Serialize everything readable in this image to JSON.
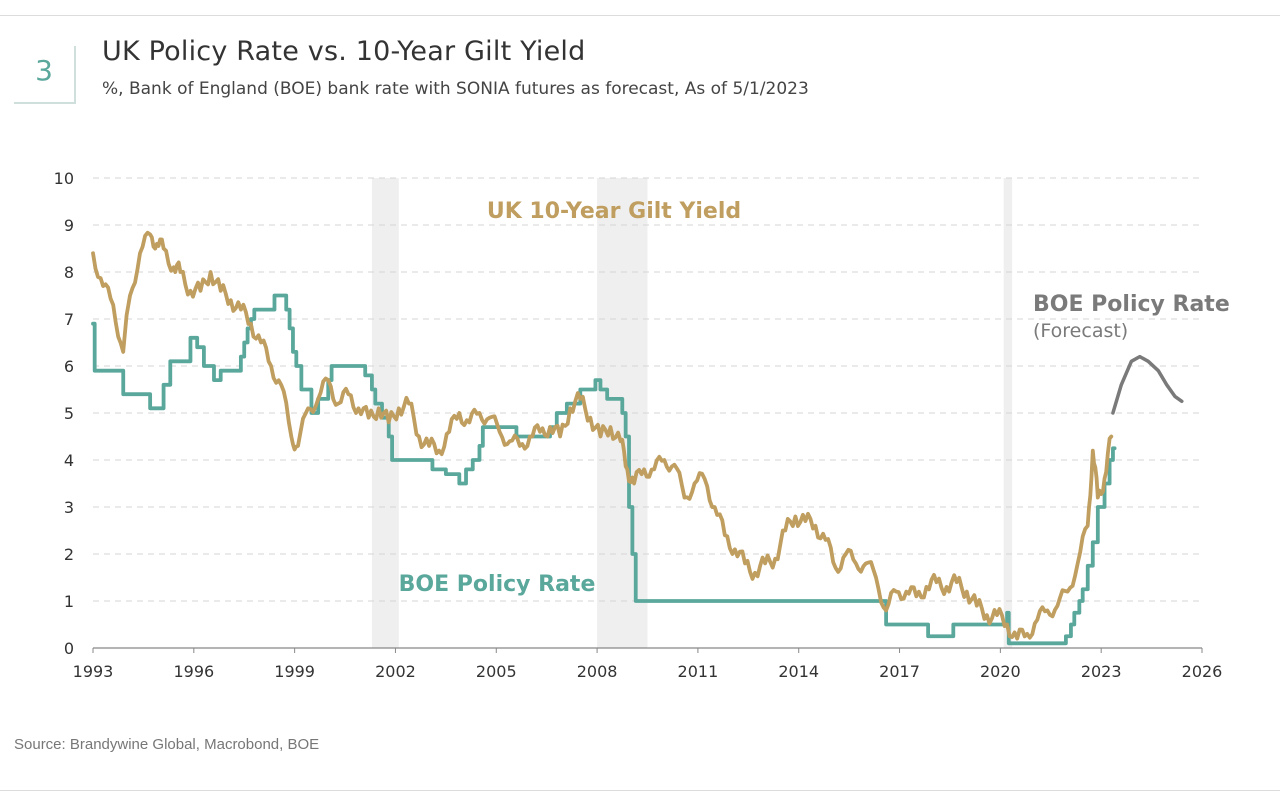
{
  "header": {
    "number": "3",
    "title": "UK Policy Rate vs. 10-Year Gilt Yield",
    "subtitle": "%, Bank of England (BOE) bank rate with SONIA futures as forecast, As of 5/1/2023"
  },
  "source": "Source: Brandywine Global, Macrobond, BOE",
  "colors": {
    "gilt": "#bf9e5f",
    "boe": "#5aa79c",
    "forecast": "#7a7a7a",
    "recession": "#efefef",
    "grid": "#d5d5d5",
    "axis": "#888888"
  },
  "chart_data": {
    "type": "line",
    "title": "UK Policy Rate vs. 10-Year Gilt Yield",
    "xlabel": "",
    "ylabel": "%",
    "xlim": [
      1993,
      2026
    ],
    "ylim": [
      0,
      10
    ],
    "x_ticks": [
      "1993",
      "1996",
      "1999",
      "2002",
      "2005",
      "2008",
      "2011",
      "2014",
      "2017",
      "2020",
      "2023",
      "2026"
    ],
    "y_ticks": [
      "0",
      "1",
      "2",
      "3",
      "4",
      "5",
      "6",
      "7",
      "8",
      "9",
      "10"
    ],
    "grid": "horizontal dashed",
    "shaded_periods": [
      [
        2001.3,
        2002.1
      ],
      [
        2008.0,
        2009.5
      ],
      [
        2020.1,
        2020.35
      ]
    ],
    "annotations": {
      "gilt_label": "UK 10-Year Gilt Yield",
      "boe_label": "BOE Policy Rate",
      "forecast_label": "BOE Policy Rate",
      "forecast_sub": "(Forecast)"
    },
    "series": [
      {
        "name": "BOE Policy Rate",
        "step": true,
        "x": [
          1993.0,
          1993.05,
          1993.9,
          1994.7,
          1995.1,
          1995.3,
          1995.9,
          1996.1,
          1996.3,
          1996.6,
          1996.8,
          1997.4,
          1997.5,
          1997.6,
          1997.7,
          1997.8,
          1998.4,
          1998.75,
          1998.85,
          1998.95,
          1999.05,
          1999.2,
          1999.5,
          1999.7,
          2000.0,
          2000.1,
          2001.1,
          2001.3,
          2001.4,
          2001.6,
          2001.8,
          2001.9,
          2003.1,
          2003.5,
          2003.9,
          2004.1,
          2004.3,
          2004.5,
          2004.6,
          2005.6,
          2006.6,
          2006.8,
          2007.1,
          2007.5,
          2007.95,
          2008.1,
          2008.3,
          2008.75,
          2008.85,
          2008.95,
          2009.05,
          2009.15,
          2016.6,
          2017.85,
          2018.6,
          2020.2,
          2020.25,
          2021.95,
          2022.1,
          2022.2,
          2022.35,
          2022.45,
          2022.6,
          2022.75,
          2022.9,
          2023.1,
          2023.25,
          2023.35
        ],
        "values": [
          6.9,
          5.9,
          5.4,
          5.1,
          5.6,
          6.1,
          6.6,
          6.4,
          6.0,
          5.7,
          5.9,
          6.2,
          6.5,
          6.8,
          7.0,
          7.2,
          7.5,
          7.2,
          6.8,
          6.3,
          6.0,
          5.5,
          5.0,
          5.3,
          5.7,
          6.0,
          5.8,
          5.5,
          5.2,
          4.9,
          4.5,
          4.0,
          3.8,
          3.7,
          3.5,
          3.8,
          4.0,
          4.3,
          4.7,
          4.5,
          4.7,
          5.0,
          5.2,
          5.5,
          5.7,
          5.5,
          5.3,
          5.0,
          4.5,
          3.0,
          2.0,
          1.0,
          0.5,
          0.25,
          0.5,
          0.75,
          0.1,
          0.25,
          0.5,
          0.75,
          1.0,
          1.25,
          1.75,
          2.25,
          3.0,
          3.5,
          4.0,
          4.25
        ]
      },
      {
        "name": "UK 10-Year Gilt Yield",
        "x": [
          1993.0,
          1993.3,
          1993.6,
          1993.9,
          1994.1,
          1994.4,
          1994.7,
          1994.9,
          1995.1,
          1995.4,
          1995.6,
          1995.9,
          1996.2,
          1996.5,
          1996.8,
          1997.1,
          1997.4,
          1997.7,
          1998.0,
          1998.3,
          1998.6,
          1998.9,
          1999.1,
          1999.4,
          1999.7,
          2000.0,
          2000.3,
          2000.6,
          2000.9,
          2001.2,
          2001.5,
          2001.8,
          2002.1,
          2002.4,
          2002.7,
          2003.0,
          2003.3,
          2003.6,
          2003.9,
          2004.2,
          2004.5,
          2004.8,
          2005.1,
          2005.4,
          2005.7,
          2006.0,
          2006.3,
          2006.6,
          2006.9,
          2007.2,
          2007.5,
          2007.8,
          2008.1,
          2008.4,
          2008.7,
          2008.9,
          2009.1,
          2009.4,
          2009.7,
          2010.0,
          2010.3,
          2010.6,
          2010.9,
          2011.2,
          2011.5,
          2011.8,
          2012.1,
          2012.4,
          2012.7,
          2013.0,
          2013.3,
          2013.6,
          2013.9,
          2014.2,
          2014.5,
          2014.8,
          2015.1,
          2015.4,
          2015.7,
          2016.0,
          2016.3,
          2016.6,
          2016.9,
          2017.2,
          2017.5,
          2017.8,
          2018.1,
          2018.4,
          2018.7,
          2019.0,
          2019.3,
          2019.6,
          2019.9,
          2020.2,
          2020.5,
          2020.8,
          2021.1,
          2021.4,
          2021.7,
          2022.0,
          2022.3,
          2022.6,
          2022.75,
          2022.9,
          2023.1,
          2023.3
        ],
        "values": [
          8.4,
          7.7,
          7.3,
          6.3,
          7.5,
          8.4,
          8.8,
          8.6,
          8.5,
          8.1,
          8.0,
          7.6,
          7.6,
          8.0,
          7.6,
          7.4,
          7.2,
          6.9,
          6.5,
          6.0,
          5.6,
          4.5,
          4.3,
          5.1,
          5.3,
          5.7,
          5.2,
          5.4,
          5.1,
          4.9,
          5.1,
          4.8,
          5.1,
          5.2,
          4.5,
          4.3,
          4.2,
          4.6,
          5.0,
          4.8,
          5.0,
          4.9,
          4.6,
          4.4,
          4.3,
          4.5,
          4.6,
          4.7,
          4.5,
          5.1,
          5.3,
          4.9,
          4.5,
          4.7,
          4.4,
          3.8,
          3.5,
          3.8,
          3.8,
          4.0,
          3.9,
          3.2,
          3.5,
          3.6,
          3.0,
          2.4,
          2.1,
          1.8,
          1.6,
          1.8,
          1.9,
          2.5,
          2.8,
          2.7,
          2.6,
          2.3,
          1.7,
          2.0,
          1.8,
          1.8,
          1.5,
          0.8,
          1.2,
          1.2,
          1.1,
          1.3,
          1.4,
          1.3,
          1.4,
          1.2,
          0.9,
          0.7,
          0.7,
          0.5,
          0.2,
          0.3,
          0.6,
          0.8,
          0.9,
          1.2,
          1.8,
          2.6,
          4.2,
          3.2,
          3.6,
          4.5
        ]
      },
      {
        "name": "BOE Policy Rate (Forecast)",
        "x": [
          2023.35,
          2023.6,
          2023.9,
          2024.15,
          2024.4,
          2024.7,
          2024.95,
          2025.2,
          2025.4
        ],
        "values": [
          5.0,
          5.6,
          6.1,
          6.2,
          6.1,
          5.9,
          5.6,
          5.35,
          5.25
        ]
      }
    ]
  }
}
